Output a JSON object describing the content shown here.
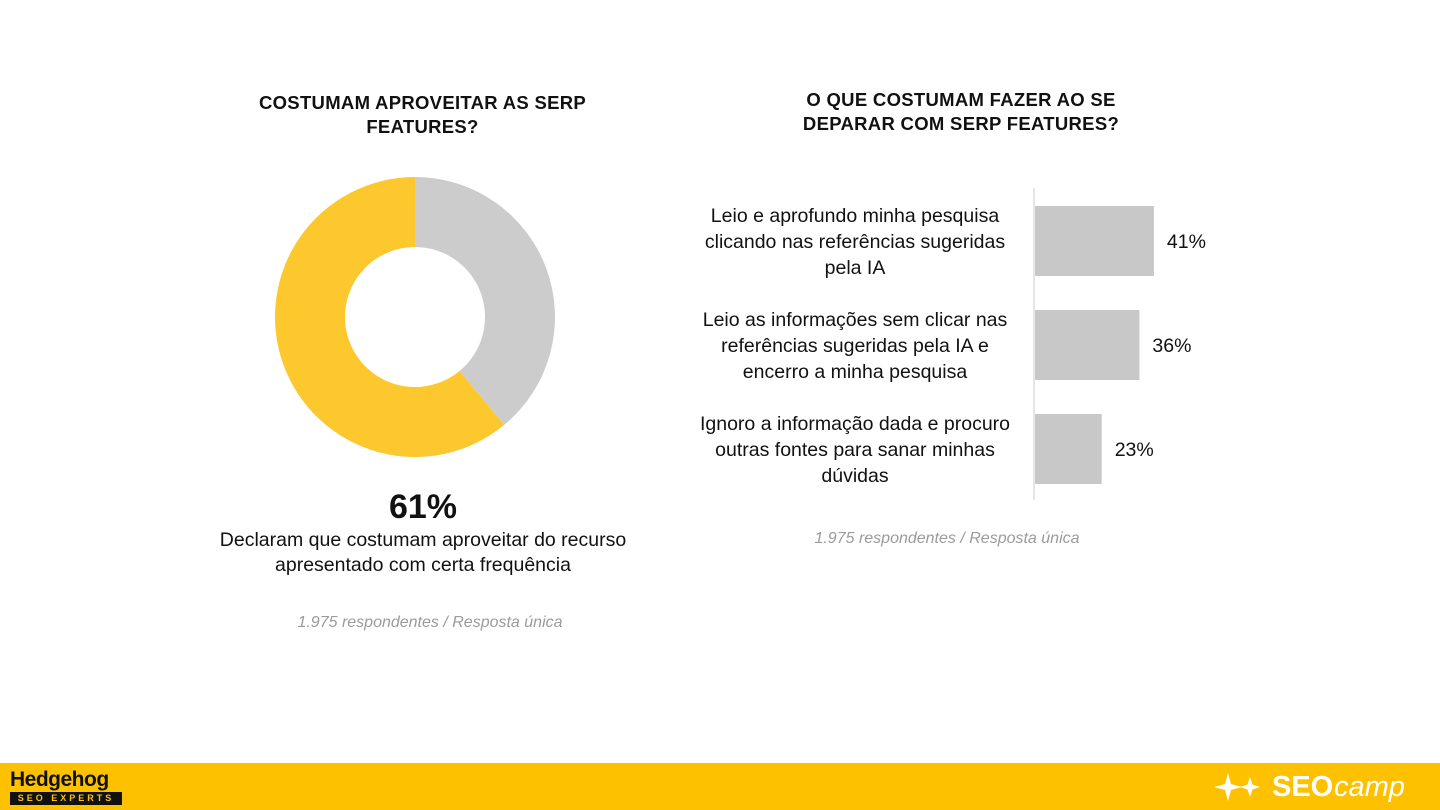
{
  "left_panel": {
    "title": "COSTUMAM APROVEITAR AS SERP FEATURES?",
    "highlight_value": "61%",
    "caption": "Declaram que costumam aproveitar do recurso apresentado com certa frequência",
    "source": "1.975 respondentes / Resposta única"
  },
  "right_panel": {
    "title": "O QUE COSTUMAM FAZER AO SE DEPARAR COM SERP FEATURES?",
    "source": "1.975 respondentes / Resposta única"
  },
  "chart_data": [
    {
      "type": "pie",
      "variant": "donut",
      "slices": [
        {
          "value": 61,
          "color": "#fdc72e"
        },
        {
          "value": 39,
          "color": "#cccccc"
        }
      ]
    },
    {
      "type": "bar",
      "orientation": "horizontal",
      "categories": [
        "Leio e aprofundo minha pesquisa clicando nas referências sugeridas pela IA",
        "Leio as informações sem clicar nas referências sugeridas pela IA e encerro a minha pesquisa",
        "Ignoro a informação dada e procuro outras fontes para sanar minhas dúvidas"
      ],
      "category_lines": [
        [
          "Leio e aprofundo minha pesquisa",
          "clicando nas referências sugeridas",
          "pela IA"
        ],
        [
          "Leio as informações sem clicar nas",
          "referências sugeridas pela IA e",
          "encerro a minha pesquisa"
        ],
        [
          "Ignoro a informação dada e procuro",
          "outras fontes para sanar minhas",
          "dúvidas"
        ]
      ],
      "values": [
        41,
        36,
        23
      ],
      "value_labels": [
        "41%",
        "36%",
        "23%"
      ],
      "bar_color": "#c8c8c8",
      "xlim": [
        0,
        100
      ]
    }
  ],
  "footer": {
    "background": "#fdc100",
    "left_logo": {
      "name": "Hedgehog",
      "tagline": "SEO EXPERTS"
    },
    "right_logo": {
      "icon": "sparkle-icon",
      "part1": "SEO",
      "part2": "camp"
    }
  }
}
